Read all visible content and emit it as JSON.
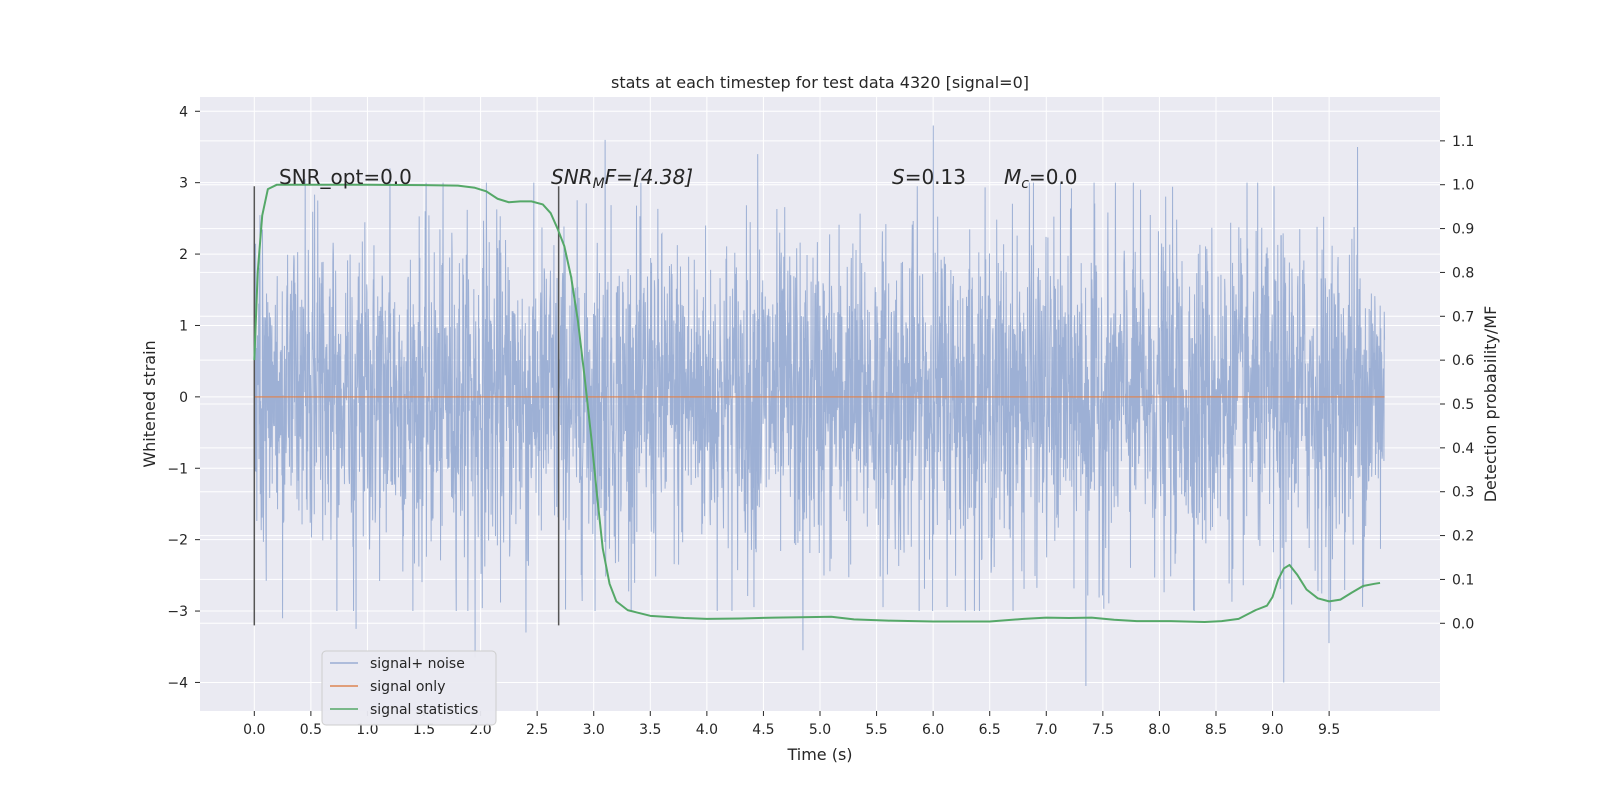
{
  "chart_data": {
    "type": "line",
    "title": "stats at each timestep for test data 4320 [signal=0]",
    "xlabel": "Time (s)",
    "ylabel": "Whitened strain",
    "ylabel_right": "Detection probability/MF",
    "xlim": [
      -0.48,
      10.48
    ],
    "ylim": [
      -4.4,
      4.2
    ],
    "ylim_right": [
      -0.2,
      1.2
    ],
    "x_ticks": [
      0.0,
      0.5,
      1.0,
      1.5,
      2.0,
      2.5,
      3.0,
      3.5,
      4.0,
      4.5,
      5.0,
      5.5,
      6.0,
      6.5,
      7.0,
      7.5,
      8.0,
      8.5,
      9.0,
      9.5
    ],
    "x_tick_labels": [
      "0.0",
      "0.5",
      "1.0",
      "1.5",
      "2.0",
      "2.5",
      "3.0",
      "3.5",
      "4.0",
      "4.5",
      "5.0",
      "5.5",
      "6.0",
      "6.5",
      "7.0",
      "7.5",
      "8.0",
      "8.5",
      "9.0",
      "9.5"
    ],
    "y_ticks": [
      -4,
      -3,
      -2,
      -1,
      0,
      1,
      2,
      3,
      4
    ],
    "y_tick_labels": [
      "−4",
      "−3",
      "−2",
      "−1",
      "0",
      "1",
      "2",
      "3",
      "4"
    ],
    "y_ticks_right": [
      0.0,
      0.1,
      0.2,
      0.3,
      0.4,
      0.5,
      0.6,
      0.7,
      0.8,
      0.9,
      1.0,
      1.1
    ],
    "y_tick_labels_right": [
      "0.0",
      "0.1",
      "0.2",
      "0.3",
      "0.4",
      "0.5",
      "0.6",
      "0.7",
      "0.8",
      "0.9",
      "1.0",
      "1.1"
    ],
    "grid": true,
    "legend_position": "lower-left",
    "series": [
      {
        "name": "signal+ noise",
        "axis": "left",
        "color": "#99add3",
        "x_range": [
          0.0,
          9.99
        ],
        "typical_band": [
          -1.8,
          1.8
        ],
        "peaks": [
          [
            0.45,
            3.05
          ],
          [
            1.2,
            3.2
          ],
          [
            2.05,
            3.0
          ],
          [
            3.1,
            3.6
          ],
          [
            4.45,
            3.4
          ],
          [
            6.0,
            3.8
          ],
          [
            6.85,
            3.0
          ],
          [
            9.75,
            3.5
          ]
        ],
        "troughs": [
          [
            0.25,
            -3.1
          ],
          [
            0.9,
            -3.25
          ],
          [
            1.95,
            -3.65
          ],
          [
            2.4,
            -3.3
          ],
          [
            4.85,
            -3.55
          ],
          [
            7.35,
            -4.05
          ],
          [
            9.1,
            -4.0
          ],
          [
            9.5,
            -3.45
          ]
        ]
      },
      {
        "name": "signal only",
        "axis": "left",
        "color": "#dd8452",
        "x": [
          0.0,
          9.99
        ],
        "y": [
          0.0,
          0.0
        ]
      },
      {
        "name": "signal statistics",
        "axis": "right",
        "color": "#55a868",
        "x": [
          0.0,
          0.03,
          0.07,
          0.12,
          0.2,
          0.35,
          0.6,
          1.0,
          1.5,
          1.8,
          1.95,
          2.05,
          2.15,
          2.25,
          2.35,
          2.45,
          2.55,
          2.62,
          2.68,
          2.74,
          2.8,
          2.86,
          2.92,
          2.98,
          3.03,
          3.08,
          3.14,
          3.2,
          3.3,
          3.5,
          3.8,
          4.0,
          4.3,
          4.6,
          4.9,
          5.1,
          5.3,
          5.6,
          6.0,
          6.5,
          6.8,
          7.0,
          7.2,
          7.4,
          7.6,
          7.8,
          8.1,
          8.4,
          8.55,
          8.7,
          8.85,
          8.95,
          9.0,
          9.05,
          9.1,
          9.15,
          9.22,
          9.3,
          9.4,
          9.5,
          9.6,
          9.7,
          9.8,
          9.9,
          9.95
        ],
        "y": [
          0.6,
          0.8,
          0.93,
          0.99,
          1.0,
          1.0,
          1.0,
          1.0,
          0.999,
          0.998,
          0.993,
          0.985,
          0.968,
          0.96,
          0.962,
          0.962,
          0.955,
          0.935,
          0.9,
          0.86,
          0.79,
          0.69,
          0.56,
          0.42,
          0.29,
          0.17,
          0.09,
          0.05,
          0.03,
          0.017,
          0.012,
          0.01,
          0.011,
          0.013,
          0.014,
          0.015,
          0.009,
          0.006,
          0.004,
          0.004,
          0.01,
          0.013,
          0.012,
          0.013,
          0.008,
          0.005,
          0.005,
          0.003,
          0.005,
          0.01,
          0.03,
          0.04,
          0.06,
          0.1,
          0.125,
          0.133,
          0.11,
          0.077,
          0.057,
          0.05,
          0.054,
          0.07,
          0.085,
          0.09,
          0.092
        ]
      }
    ],
    "vertical_markers": [
      {
        "x": 0.0,
        "y_range": [
          -3.2,
          2.95
        ],
        "color": "#555555"
      },
      {
        "x": 2.69,
        "y_range": [
          -3.2,
          2.95
        ],
        "color": "#555555"
      }
    ],
    "annotations": {
      "snr_opt": "SNR_opt=0.0",
      "snr_mf_prefix": "SNR",
      "snr_mf_sub": "M",
      "snr_mf_suffix": "F=[4.38]",
      "s_var": "S",
      "s_val": "=0.13",
      "mc_var": "M",
      "mc_sub": "c",
      "mc_val": "=0.0"
    }
  }
}
